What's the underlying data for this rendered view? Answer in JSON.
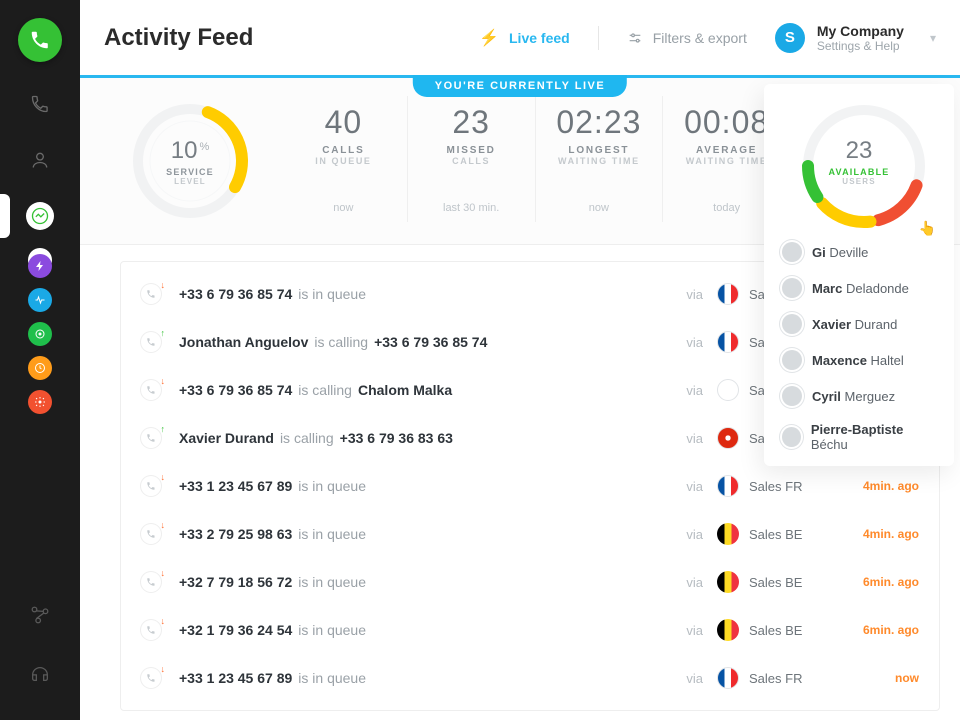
{
  "colors": {
    "accent_blue": "#29b8f0",
    "accent_green": "#35c135",
    "accent_orange": "#ff8a2b",
    "accent_yellow": "#ffcc00",
    "accent_red": "#f04f32",
    "text_muted": "#98a0a6"
  },
  "header": {
    "title": "Activity Feed",
    "live_feed_label": "Live feed",
    "filters_label": "Filters & export",
    "company_name": "My Company",
    "company_sub": "Settings & Help",
    "company_badge_letter": "S"
  },
  "live_banner": "YOU'RE CURRENTLY LIVE",
  "gauges": {
    "service": {
      "value": "10",
      "unit": "%",
      "label1": "SERVICE",
      "label2": "LEVEL",
      "degrees": 100,
      "start_deg": 20,
      "color": "#ffcc00",
      "track_color": "#f1f2f3"
    },
    "users": {
      "value": "23",
      "label1": "AVAILABLE",
      "label2": "USERS",
      "segments": [
        {
          "color": "#f04f32",
          "len": 55,
          "gap": 8
        },
        {
          "color": "#ffcc00",
          "len": 55,
          "gap": 8
        },
        {
          "color": "#35c135",
          "len": 210,
          "gap": 0
        }
      ],
      "start_deg": 200
    }
  },
  "kpis": [
    {
      "value": "40",
      "label1": "CALLS",
      "label2": "IN QUEUE",
      "ts": "now"
    },
    {
      "value": "23",
      "label1": "MISSED",
      "label2": "CALLS",
      "ts": "last 30 min."
    },
    {
      "value": "02:23",
      "label1": "LONGEST",
      "label2": "WAITING TIME",
      "ts": "now"
    },
    {
      "value": "00:08",
      "label1": "AVERAGE",
      "label2": "WAITING TIME",
      "ts": "today"
    }
  ],
  "feed": [
    {
      "dir": "out",
      "b1": "+33 6 79 36 85 74",
      "m": "is in queue",
      "b2": "",
      "via": "via",
      "flag": "FR",
      "team": "Sales FR",
      "ago": ""
    },
    {
      "dir": "in",
      "b1": "Jonathan Anguelov",
      "m": "is calling",
      "b2": "+33 6 79 36 85 74",
      "via": "via",
      "flag": "FR",
      "team": "Sales FR",
      "ago": ""
    },
    {
      "dir": "out",
      "b1": "+33 6 79 36 85 74",
      "m": "is calling",
      "b2": "Chalom Malka",
      "via": "via",
      "flag": "UK",
      "team": "Sales UK",
      "ago": ""
    },
    {
      "dir": "in",
      "b1": "Xavier Durand",
      "m": "is calling",
      "b2": "+33 6 79 36 83 63",
      "via": "via",
      "flag": "HK",
      "team": "Sales HK",
      "ago": ""
    },
    {
      "dir": "out",
      "b1": "+33 1 23 45 67 89",
      "m": "is in queue",
      "b2": "",
      "via": "via",
      "flag": "FR",
      "team": "Sales FR",
      "ago": "4min. ago"
    },
    {
      "dir": "out",
      "b1": "+33 2 79 25 98 63",
      "m": "is in queue",
      "b2": "",
      "via": "via",
      "flag": "BE",
      "team": "Sales BE",
      "ago": "4min. ago"
    },
    {
      "dir": "out",
      "b1": "+32 7 79 18 56 72",
      "m": "is in queue",
      "b2": "",
      "via": "via",
      "flag": "BE",
      "team": "Sales BE",
      "ago": "6min. ago"
    },
    {
      "dir": "out",
      "b1": "+32 1 79 36 24 54",
      "m": "is in queue",
      "b2": "",
      "via": "via",
      "flag": "BE",
      "team": "Sales BE",
      "ago": "6min. ago"
    },
    {
      "dir": "out",
      "b1": "+33 1 23 45 67 89",
      "m": "is in queue",
      "b2": "",
      "via": "via",
      "flag": "FR",
      "team": "Sales FR",
      "ago": "now"
    }
  ],
  "users_panel": [
    {
      "first": "Gi",
      "last": "Deville"
    },
    {
      "first": "Marc",
      "last": "Deladonde"
    },
    {
      "first": "Xavier",
      "last": "Durand"
    },
    {
      "first": "Maxence",
      "last": "Haltel"
    },
    {
      "first": "Cyril",
      "last": "Merguez"
    },
    {
      "first": "Pierre-Baptiste",
      "last": "Béchu"
    }
  ],
  "mini_nav_colors": [
    "#8b4bdf",
    "#1aa9e6",
    "#1fbf4b",
    "#ff9c1a",
    "#f25130"
  ]
}
